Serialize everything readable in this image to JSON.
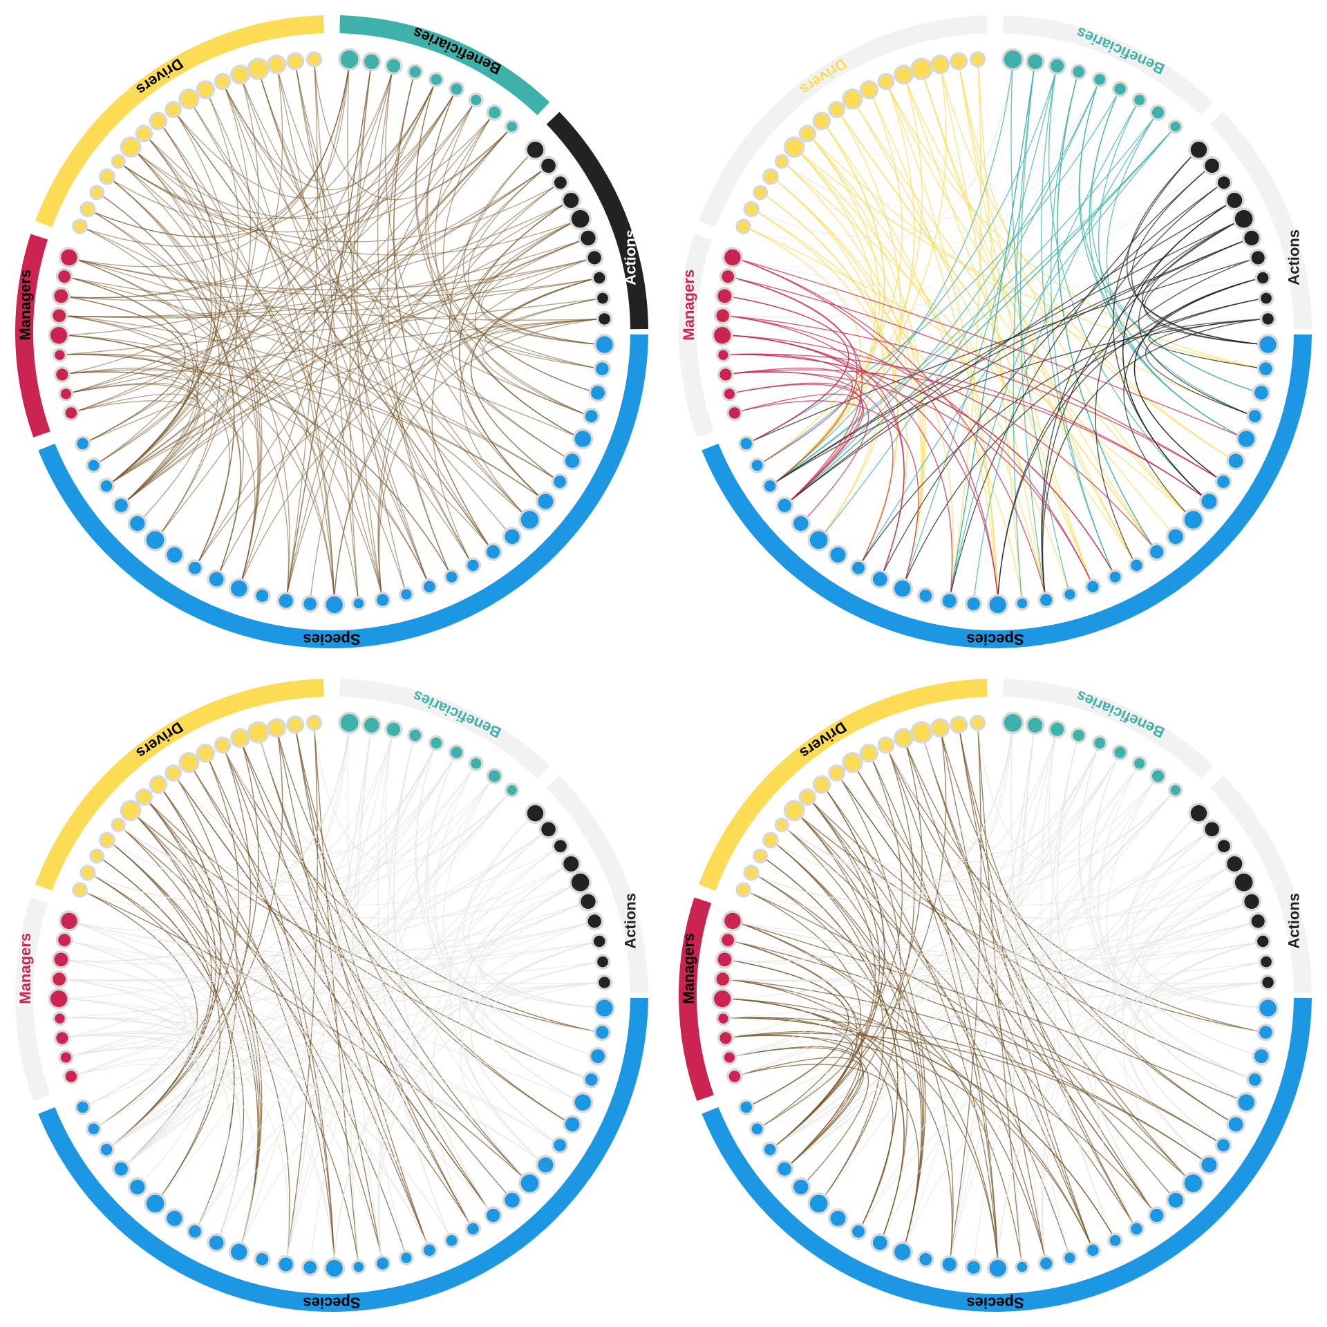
{
  "panels": [
    {
      "id": "all",
      "color_mode": "brown",
      "active_groups": [
        "Drivers",
        "Beneficiaries",
        "Actions",
        "Species",
        "Managers"
      ],
      "highlight_source": "all"
    },
    {
      "id": "by-group",
      "color_mode": "group",
      "active_groups": [
        "Species"
      ],
      "highlight_source": "all"
    },
    {
      "id": "drivers",
      "color_mode": "brown",
      "active_groups": [
        "Drivers",
        "Species"
      ],
      "highlight_source": "Drivers"
    },
    {
      "id": "drivers-managers",
      "color_mode": "brown",
      "active_groups": [
        "Drivers",
        "Managers",
        "Species"
      ],
      "highlight_source": "Drivers+Managers"
    }
  ],
  "groups": [
    {
      "name": "Drivers",
      "label": "Drivers",
      "color": "#FDDC55",
      "node_count": 17
    },
    {
      "name": "Beneficiaries",
      "label": "Beneficiaries",
      "color": "#3EB1AA",
      "node_count": 9
    },
    {
      "name": "Actions",
      "label": "Actions",
      "color": "#222222",
      "node_count": 10
    },
    {
      "name": "Species",
      "label": "Species",
      "color": "#1B97E3",
      "node_count": 31
    },
    {
      "name": "Managers",
      "label": "Managers",
      "color": "#CC2451",
      "node_count": 9
    }
  ],
  "colors": {
    "link_brown": "#7A5A2E",
    "inactive_ring": "#F2F2F2",
    "inactive_link": "#E6E6E6",
    "node_halo": "#D8D8D8"
  }
}
